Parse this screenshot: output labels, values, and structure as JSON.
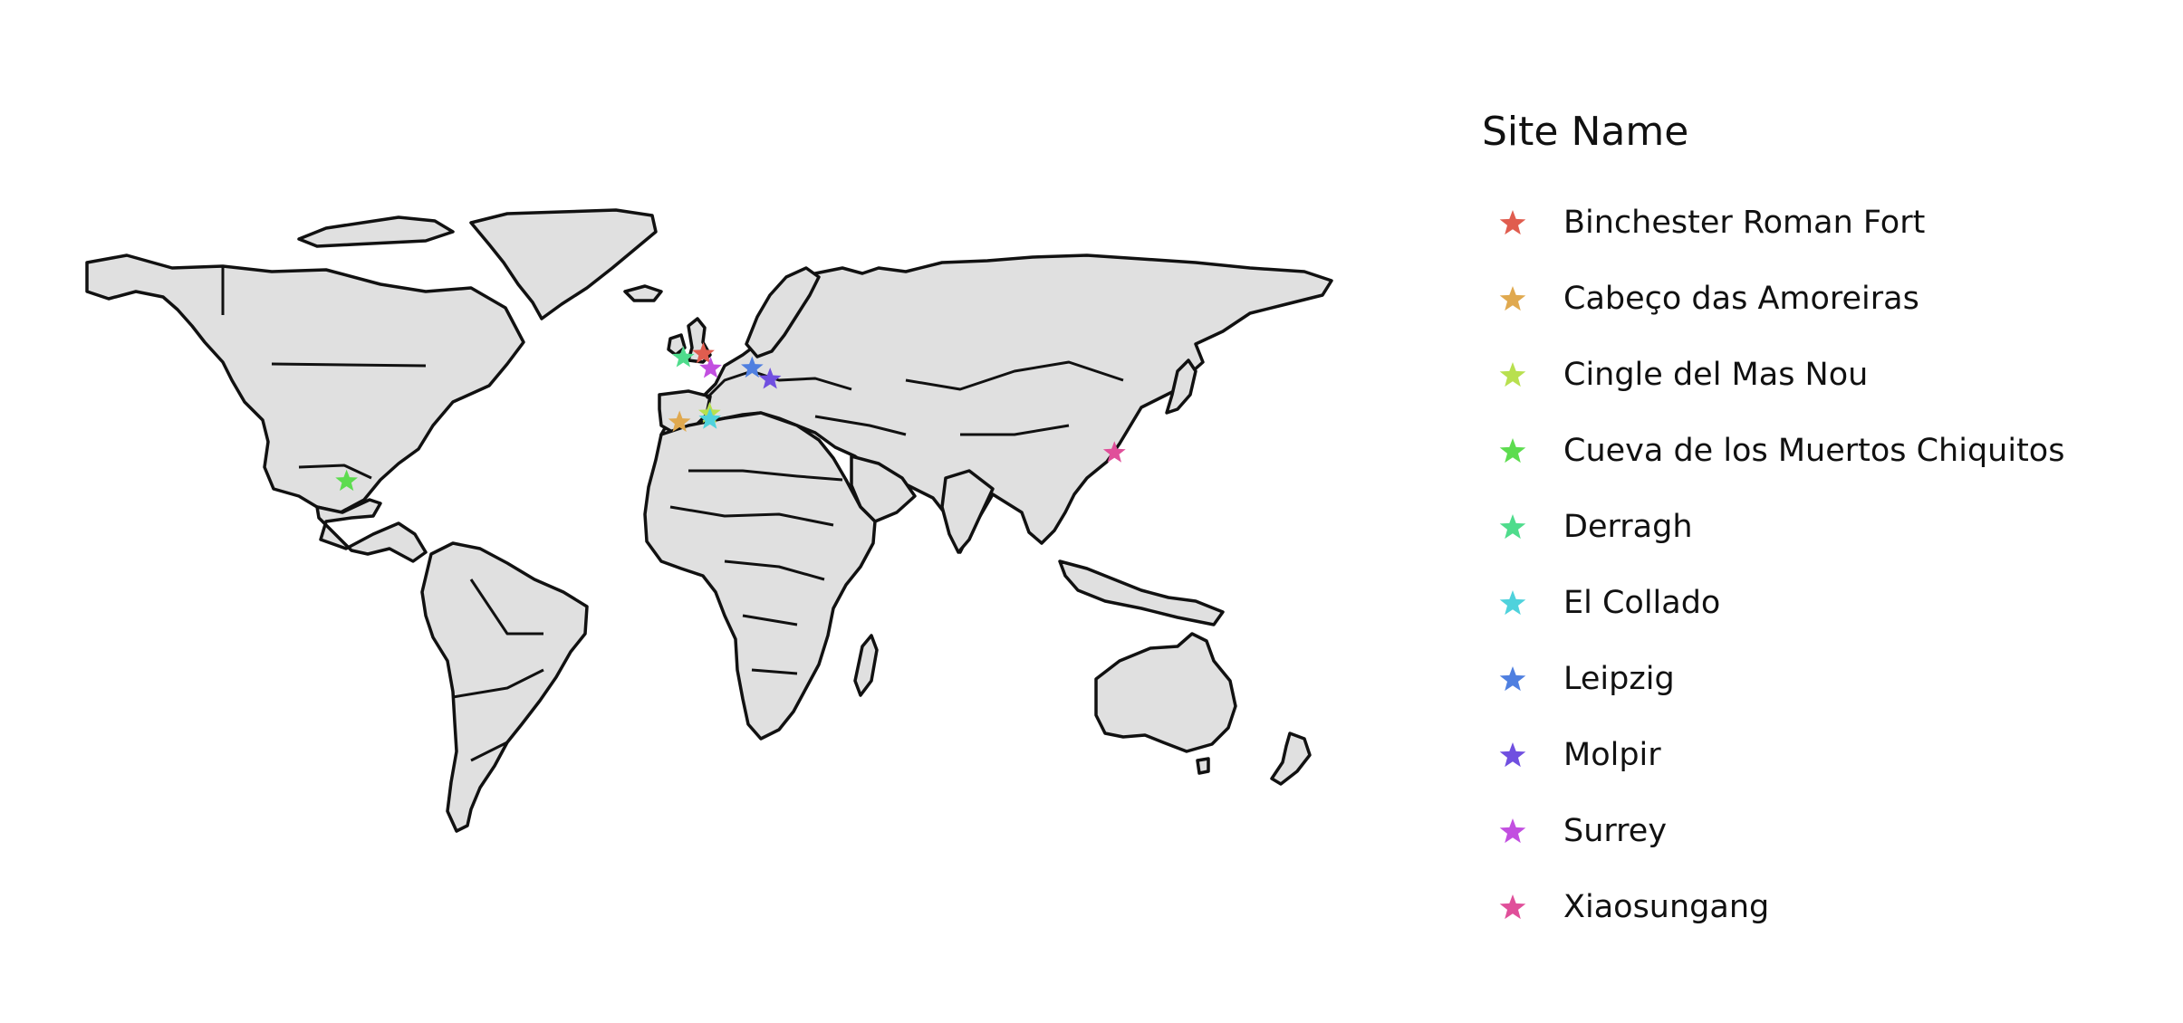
{
  "map": {
    "projection": "equirectangular",
    "lon_range": [
      -180,
      180
    ],
    "lat_range": [
      -60,
      90
    ],
    "land_fill": "#e0e0e0",
    "border_color": "#111111",
    "marker_shape": "star"
  },
  "legend": {
    "title": "Site Name",
    "placement": "right"
  },
  "sites": [
    {
      "name": "Binchester Roman Fort",
      "lon": -1.7,
      "lat": 54.7,
      "color": "#e05d4f"
    },
    {
      "name": "Cabeço das Amoreiras",
      "lon": -8.6,
      "lat": 38.3,
      "color": "#e0a94f"
    },
    {
      "name": "Cingle del Mas Nou",
      "lon": 0.1,
      "lat": 40.4,
      "color": "#b8e04f"
    },
    {
      "name": "Cueva de los Muertos Chiquitos",
      "lon": -104.9,
      "lat": 24.2,
      "color": "#5ddc4f"
    },
    {
      "name": "Derragh",
      "lon": -7.5,
      "lat": 53.8,
      "color": "#4fdc8c"
    },
    {
      "name": "El Collado",
      "lon": 0.2,
      "lat": 39.0,
      "color": "#4fd2dc"
    },
    {
      "name": "Leipzig",
      "lon": 12.4,
      "lat": 51.3,
      "color": "#4f7fe0"
    },
    {
      "name": "Molpir",
      "lon": 17.6,
      "lat": 48.6,
      "color": "#704fe0"
    },
    {
      "name": "Surrey",
      "lon": 0.4,
      "lat": 51.2,
      "color": "#c24fe0"
    },
    {
      "name": "Xiaosungang",
      "lon": 117.2,
      "lat": 31.0,
      "color": "#e04f9a"
    }
  ]
}
